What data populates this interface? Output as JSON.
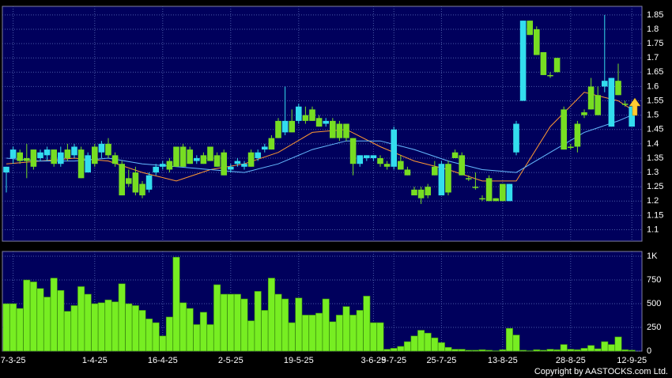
{
  "chart_data": [
    {
      "type": "candlestick",
      "open": [
        1.3,
        1.35,
        1.37,
        1.35,
        1.38,
        1.35,
        1.36,
        1.38,
        1.33,
        1.38,
        1.36,
        1.38,
        1.3,
        1.39,
        1.37,
        1.4,
        1.36,
        1.33,
        1.28,
        1.3,
        1.26,
        1.24,
        1.3,
        1.32,
        1.34,
        1.39,
        1.39,
        1.38,
        1.34,
        1.36,
        1.39,
        1.36,
        1.37,
        1.31,
        1.33,
        1.32,
        1.37,
        1.35,
        1.38,
        1.42,
        1.48,
        1.44,
        1.48,
        1.48,
        1.5,
        1.52,
        1.49,
        1.47,
        1.48,
        1.47,
        1.47,
        1.42,
        1.33,
        1.35,
        1.35,
        1.35,
        1.33,
        1.32,
        1.34,
        1.31,
        1.24,
        1.24,
        1.25,
        1.32,
        1.22,
        1.33,
        1.37,
        1.36,
        1.28,
        1.25,
        1.21,
        1.28,
        1.21,
        1.26,
        1.2,
        1.37,
        1.55,
        1.83,
        1.8,
        1.72,
        1.64,
        1.7,
        1.52,
        1.39,
        1.47,
        1.51,
        1.6,
        1.57,
        1.6,
        1.46,
        1.62,
        1.54,
        1.46
      ],
      "high": [
        1.32,
        1.39,
        1.38,
        1.4,
        1.38,
        1.38,
        1.39,
        1.38,
        1.39,
        1.4,
        1.4,
        1.39,
        1.37,
        1.4,
        1.41,
        1.42,
        1.37,
        1.34,
        1.31,
        1.32,
        1.27,
        1.3,
        1.33,
        1.34,
        1.35,
        1.39,
        1.4,
        1.39,
        1.36,
        1.37,
        1.39,
        1.37,
        1.38,
        1.33,
        1.35,
        1.34,
        1.38,
        1.38,
        1.4,
        1.43,
        1.49,
        1.6,
        1.52,
        1.54,
        1.53,
        1.53,
        1.5,
        1.49,
        1.49,
        1.48,
        1.47,
        1.42,
        1.36,
        1.36,
        1.36,
        1.36,
        1.34,
        1.46,
        1.36,
        1.32,
        1.25,
        1.25,
        1.26,
        1.34,
        1.34,
        1.34,
        1.38,
        1.37,
        1.29,
        1.3,
        1.22,
        1.29,
        1.21,
        1.26,
        1.26,
        1.48,
        1.83,
        1.83,
        1.81,
        1.72,
        1.65,
        1.7,
        1.53,
        1.4,
        1.48,
        1.52,
        1.63,
        1.6,
        1.85,
        1.63,
        1.68,
        1.55,
        1.53
      ],
      "low": [
        1.23,
        1.33,
        1.33,
        1.28,
        1.31,
        1.34,
        1.34,
        1.32,
        1.32,
        1.34,
        1.35,
        1.28,
        1.3,
        1.32,
        1.35,
        1.35,
        1.32,
        1.22,
        1.25,
        1.22,
        1.21,
        1.23,
        1.29,
        1.31,
        1.3,
        1.32,
        1.32,
        1.33,
        1.33,
        1.33,
        1.34,
        1.32,
        1.29,
        1.3,
        1.32,
        1.31,
        1.32,
        1.34,
        1.37,
        1.38,
        1.42,
        1.43,
        1.44,
        1.47,
        1.47,
        1.48,
        1.46,
        1.46,
        1.42,
        1.41,
        1.41,
        1.29,
        1.32,
        1.34,
        1.34,
        1.32,
        1.31,
        1.31,
        1.31,
        1.29,
        1.22,
        1.19,
        1.21,
        1.29,
        1.22,
        1.22,
        1.35,
        1.29,
        1.27,
        1.24,
        1.2,
        1.2,
        1.2,
        1.2,
        1.2,
        1.36,
        1.55,
        1.78,
        1.71,
        1.64,
        1.63,
        1.65,
        1.38,
        1.38,
        1.37,
        1.49,
        1.52,
        1.5,
        1.58,
        1.46,
        1.57,
        1.53,
        1.46
      ],
      "close": [
        1.32,
        1.38,
        1.34,
        1.34,
        1.32,
        1.37,
        1.38,
        1.33,
        1.37,
        1.35,
        1.39,
        1.28,
        1.36,
        1.33,
        1.4,
        1.36,
        1.33,
        1.22,
        1.26,
        1.23,
        1.22,
        1.29,
        1.32,
        1.33,
        1.31,
        1.32,
        1.32,
        1.33,
        1.35,
        1.33,
        1.34,
        1.32,
        1.29,
        1.32,
        1.34,
        1.33,
        1.32,
        1.37,
        1.39,
        1.38,
        1.42,
        1.48,
        1.44,
        1.53,
        1.48,
        1.48,
        1.46,
        1.48,
        1.42,
        1.42,
        1.42,
        1.33,
        1.36,
        1.36,
        1.36,
        1.33,
        1.32,
        1.45,
        1.31,
        1.29,
        1.22,
        1.21,
        1.22,
        1.29,
        1.33,
        1.23,
        1.35,
        1.29,
        1.28,
        1.25,
        1.21,
        1.2,
        1.2,
        1.2,
        1.26,
        1.47,
        1.83,
        1.78,
        1.71,
        1.64,
        1.64,
        1.65,
        1.38,
        1.39,
        1.39,
        1.5,
        1.52,
        1.5,
        1.62,
        1.63,
        1.57,
        1.54,
        1.53
      ],
      "up_color": "#33ddee",
      "down_color": "#77dd22",
      "series": [
        {
          "color": "#ff9933",
          "x": [
            0,
            5,
            10,
            15,
            20,
            25,
            30,
            35,
            40,
            45,
            50,
            55,
            60,
            65,
            70,
            75,
            80,
            85,
            90,
            92
          ],
          "values": [
            1.33,
            1.34,
            1.35,
            1.34,
            1.3,
            1.27,
            1.31,
            1.33,
            1.37,
            1.44,
            1.45,
            1.39,
            1.34,
            1.31,
            1.27,
            1.27,
            1.46,
            1.58,
            1.55,
            1.52
          ]
        },
        {
          "color": "#66bbff",
          "x": [
            0,
            5,
            10,
            15,
            20,
            25,
            30,
            35,
            40,
            45,
            50,
            55,
            60,
            65,
            70,
            75,
            80,
            85,
            90,
            92
          ],
          "values": [
            1.35,
            1.34,
            1.34,
            1.35,
            1.33,
            1.32,
            1.31,
            1.3,
            1.33,
            1.38,
            1.41,
            1.41,
            1.38,
            1.34,
            1.31,
            1.3,
            1.37,
            1.44,
            1.48,
            1.5
          ]
        }
      ],
      "ylim": [
        1.06,
        1.88
      ],
      "yticks": [
        1.1,
        1.15,
        1.2,
        1.25,
        1.3,
        1.35,
        1.4,
        1.45,
        1.5,
        1.55,
        1.6,
        1.65,
        1.7,
        1.75,
        1.8,
        1.85
      ],
      "grid": true
    },
    {
      "type": "bar",
      "categories": [
        null,
        "7-3-25",
        null,
        null,
        null,
        null,
        null,
        null,
        null,
        null,
        null,
        null,
        null,
        "1-4-25",
        null,
        null,
        null,
        null,
        null,
        null,
        null,
        null,
        null,
        "16-4-25",
        null,
        null,
        null,
        null,
        null,
        null,
        null,
        null,
        null,
        "2-5-25",
        null,
        null,
        null,
        null,
        null,
        null,
        null,
        null,
        null,
        "19-5-25",
        null,
        null,
        null,
        null,
        null,
        null,
        null,
        null,
        null,
        null,
        "3-6-25",
        null,
        null,
        "9-7-25",
        null,
        null,
        null,
        null,
        null,
        null,
        "25-7-25",
        null,
        null,
        null,
        null,
        null,
        null,
        null,
        null,
        "13-8-25",
        null,
        null,
        null,
        null,
        null,
        null,
        null,
        null,
        null,
        "28-8-25",
        null,
        null,
        null,
        null,
        null,
        null,
        null,
        null,
        "12-9-25"
      ],
      "values": [
        500,
        500,
        450,
        750,
        730,
        660,
        570,
        770,
        640,
        420,
        480,
        680,
        600,
        500,
        510,
        540,
        520,
        710,
        500,
        480,
        430,
        340,
        300,
        160,
        360,
        990,
        510,
        450,
        280,
        410,
        280,
        700,
        600,
        600,
        600,
        550,
        320,
        630,
        430,
        770,
        600,
        550,
        300,
        560,
        380,
        380,
        400,
        550,
        310,
        380,
        470,
        380,
        430,
        580,
        300,
        300,
        20,
        30,
        50,
        100,
        160,
        220,
        190,
        140,
        90,
        40,
        20,
        20,
        10,
        10,
        15,
        10,
        5,
        15,
        240,
        170,
        10,
        5,
        15,
        10,
        20,
        15,
        70,
        20,
        15,
        30,
        60,
        25,
        100,
        70,
        150,
        15,
        10
      ],
      "color": "#77ee22",
      "ylim": [
        0,
        1050
      ],
      "yticks": [
        0,
        250,
        500,
        750,
        {
          "value": 1000,
          "label": "1K"
        }
      ],
      "grid": true,
      "copyright": "Copyright by AASTOCKS.com Ltd."
    }
  ]
}
